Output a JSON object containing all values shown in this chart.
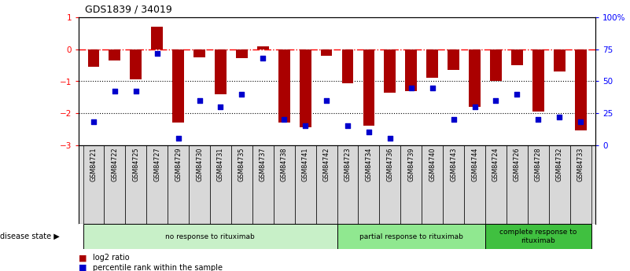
{
  "title": "GDS1839 / 34019",
  "samples": [
    "GSM84721",
    "GSM84722",
    "GSM84725",
    "GSM84727",
    "GSM84729",
    "GSM84730",
    "GSM84731",
    "GSM84735",
    "GSM84737",
    "GSM84738",
    "GSM84741",
    "GSM84742",
    "GSM84723",
    "GSM84734",
    "GSM84736",
    "GSM84739",
    "GSM84740",
    "GSM84743",
    "GSM84744",
    "GSM84724",
    "GSM84726",
    "GSM84728",
    "GSM84732",
    "GSM84733"
  ],
  "log2_ratio": [
    -0.55,
    -0.35,
    -0.95,
    0.72,
    -2.3,
    -0.25,
    -1.4,
    -0.28,
    0.1,
    -2.3,
    -2.45,
    -0.2,
    -1.05,
    -2.4,
    -1.35,
    -1.3,
    -0.9,
    -0.65,
    -1.8,
    -1.0,
    -0.5,
    -1.95,
    -0.7,
    -2.55
  ],
  "percentile": [
    18,
    42,
    42,
    72,
    5,
    35,
    30,
    40,
    68,
    20,
    15,
    35,
    15,
    10,
    5,
    45,
    45,
    20,
    30,
    35,
    40,
    20,
    22,
    18
  ],
  "groups": [
    {
      "label": "no response to rituximab",
      "start": 0,
      "end": 12,
      "color": "#c8f0c8"
    },
    {
      "label": "partial response to rituximab",
      "start": 12,
      "end": 19,
      "color": "#90e890"
    },
    {
      "label": "complete response to\nrituximab",
      "start": 19,
      "end": 24,
      "color": "#40c040"
    }
  ],
  "bar_color": "#aa0000",
  "dot_color": "#0000cc",
  "ylim_left": [
    -3.0,
    1.0
  ],
  "ylim_right": [
    0,
    100
  ],
  "background_color": "#ffffff",
  "fig_width": 8.01,
  "fig_height": 3.45,
  "dpi": 100
}
